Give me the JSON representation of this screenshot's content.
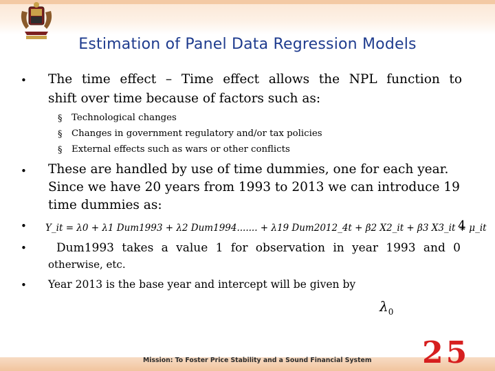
{
  "header": {
    "title": "Estimation of Panel Data Regression Models",
    "logo_icon": "crest-logo-icon"
  },
  "body": {
    "bullet_char": "•",
    "sub_bullet_char": "§",
    "b1_line1": "The time effect – Time effect allows the NPL function to",
    "b1_line2": "shift over time because of factors such as:",
    "sub_items": [
      "Technological changes",
      "Changes in government regulatory and/or tax policies",
      "External effects such as wars or other conflicts"
    ],
    "b2_line1": "These are handled by use of time dummies, one for each year.",
    "b2_line2": "Since we have 20 years from 1993 to 2013 we can introduce 19",
    "b2_line3": "time dummies as:",
    "equation": "Y_it = λ0 + λ1 Dum1993 + λ2 Dum1994....... + λ19 Dum2012_4t + β2 X2_it + β3 X3_it + μ_it",
    "equation_number": "4",
    "b4_line1": "Dum1993 takes a value 1 for observation in year 1993 and 0",
    "b4_line2": "otherwise, etc.",
    "b5_line1": "Year 2013 is the base year and intercept will be given by",
    "lambda_symbol": "λ",
    "lambda_sub": "0"
  },
  "footer": {
    "mission": "Mission: To Foster Price Stability and a Sound Financial System",
    "page_number": "25"
  },
  "colors": {
    "title": "#1f3c8e",
    "page_number": "#d61f1f",
    "band": "#f3c9a4"
  }
}
